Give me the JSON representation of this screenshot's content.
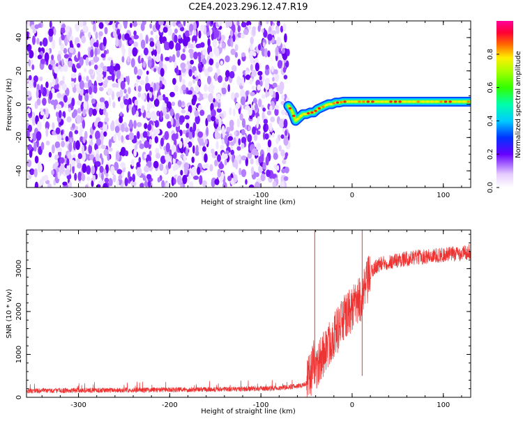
{
  "figure": {
    "title": "C2E4.2023.296.12.47.R19"
  },
  "chart_data": [
    {
      "type": "heatmap",
      "title": "C2E4.2023.296.12.47.R19",
      "xlabel": "Height of straight line (km)",
      "ylabel": "Frequency (Hz)",
      "xlim": [
        -357,
        130
      ],
      "ylim": [
        -50,
        50
      ],
      "xticks": [
        -300,
        -200,
        -100,
        0,
        100
      ],
      "yticks": [
        -40,
        -20,
        0,
        20,
        40
      ],
      "noise_region_x": [
        -357,
        -70
      ],
      "signal_track": {
        "x": [
          -70,
          -66,
          -62,
          -58,
          -54,
          -50,
          -46,
          -42,
          -38,
          -34,
          -30,
          -26,
          -22,
          -18,
          -14,
          -10,
          -6,
          -2,
          2,
          6,
          10,
          20,
          40,
          60,
          80,
          90,
          100,
          110,
          130
        ],
        "y": [
          -1,
          -4,
          -10,
          -8,
          -6,
          -6,
          -5,
          -5,
          -3,
          -2,
          -1,
          0,
          0,
          1,
          1,
          1.5,
          1.5,
          1.5,
          1.5,
          1.5,
          1.5,
          1.5,
          1.5,
          1.5,
          1.5,
          1.5,
          1.5,
          1.5,
          1.5
        ]
      },
      "colorbar": {
        "label": "Normalized spectral amplitude",
        "range": [
          0,
          1
        ],
        "ticks": [
          0.0,
          0.2,
          0.4,
          0.6,
          0.8
        ],
        "colormap": "rainbow (white - purple - blue - cyan - green - yellow - red - magenta)"
      }
    },
    {
      "type": "line",
      "xlabel": "Height of straight line (km)",
      "ylabel": "SNR (10 * v/v)",
      "xlim": [
        -357,
        130
      ],
      "ylim": [
        0,
        3900
      ],
      "xticks": [
        -300,
        -200,
        -100,
        0,
        100
      ],
      "yticks": [
        0,
        1000,
        2000,
        3000
      ],
      "color": "#ee3333",
      "spikes": [
        {
          "x": -41,
          "y": 3900
        },
        {
          "x": 11,
          "y": 3900
        }
      ],
      "series": [
        {
          "x": [
            -357,
            -300,
            -250,
            -200,
            -150,
            -100,
            -80,
            -60,
            -50,
            -46,
            -42,
            -38,
            -34,
            -30,
            -26,
            -22,
            -18,
            -14,
            -10,
            -6,
            -2,
            2,
            6,
            10,
            14,
            18,
            22,
            26,
            30,
            40,
            50,
            60,
            70,
            80,
            90,
            100,
            110,
            120,
            130
          ],
          "y": [
            150,
            160,
            170,
            175,
            185,
            200,
            220,
            260,
            320,
            500,
            800,
            700,
            900,
            1100,
            1200,
            1400,
            1500,
            1650,
            1800,
            1900,
            2000,
            2100,
            2200,
            2300,
            2500,
            2750,
            2950,
            3050,
            3100,
            3150,
            3200,
            3230,
            3260,
            3280,
            3300,
            3320,
            3340,
            3360,
            3400
          ]
        }
      ]
    }
  ]
}
